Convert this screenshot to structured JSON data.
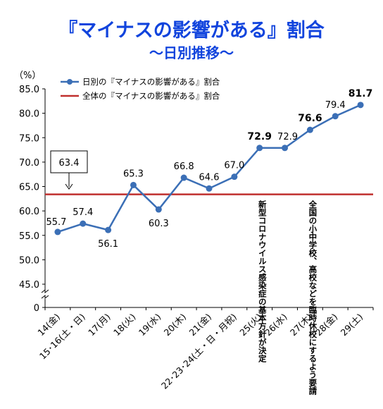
{
  "chart_data": {
    "type": "line",
    "title": "『マイナスの影響がある』割合",
    "subtitle": "～日別推移～",
    "ylabel": "（%）",
    "ylim": [
      45,
      85
    ],
    "yticks": [
      "85.0",
      "80.0",
      "75.0",
      "70.0",
      "65.0",
      "60.0",
      "55.0",
      "50.0",
      "45.0"
    ],
    "ybase_label": "0",
    "categories": [
      "14(金)",
      "15･16(土・日)",
      "17(月)",
      "18(火)",
      "19(水)",
      "20(木)",
      "21(金)",
      "22･23･24(土・日・月祝)",
      "25(火)",
      "26(水)",
      "27(木)",
      "28(金)",
      "29(土)"
    ],
    "series": [
      {
        "name": "日別の『マイナスの影響がある』割合",
        "color": "#3b6fb6",
        "values": [
          55.7,
          57.4,
          56.1,
          65.3,
          60.3,
          66.8,
          64.6,
          67.0,
          72.9,
          72.9,
          76.6,
          79.4,
          81.7
        ],
        "labels": [
          "55.7",
          "57.4",
          "56.1",
          "65.3",
          "60.3",
          "66.8",
          "64.6",
          "67.0",
          "72.9",
          "72.9",
          "76.6",
          "79.4",
          "81.7"
        ],
        "bold_indices": [
          8,
          10,
          12
        ]
      },
      {
        "name": "全体の『マイナスの影響がある』割合",
        "color": "#c0302e",
        "value": 63.4,
        "label": "63.4"
      }
    ],
    "annotations": [
      {
        "category_index": 8,
        "text": "新型コロナウイルス感染症の基本方針が決定"
      },
      {
        "category_index": 10,
        "text": "全国の小中学校、高校などを臨時休校にするよう要請"
      }
    ],
    "grid": false,
    "legend_position": "top-left"
  }
}
